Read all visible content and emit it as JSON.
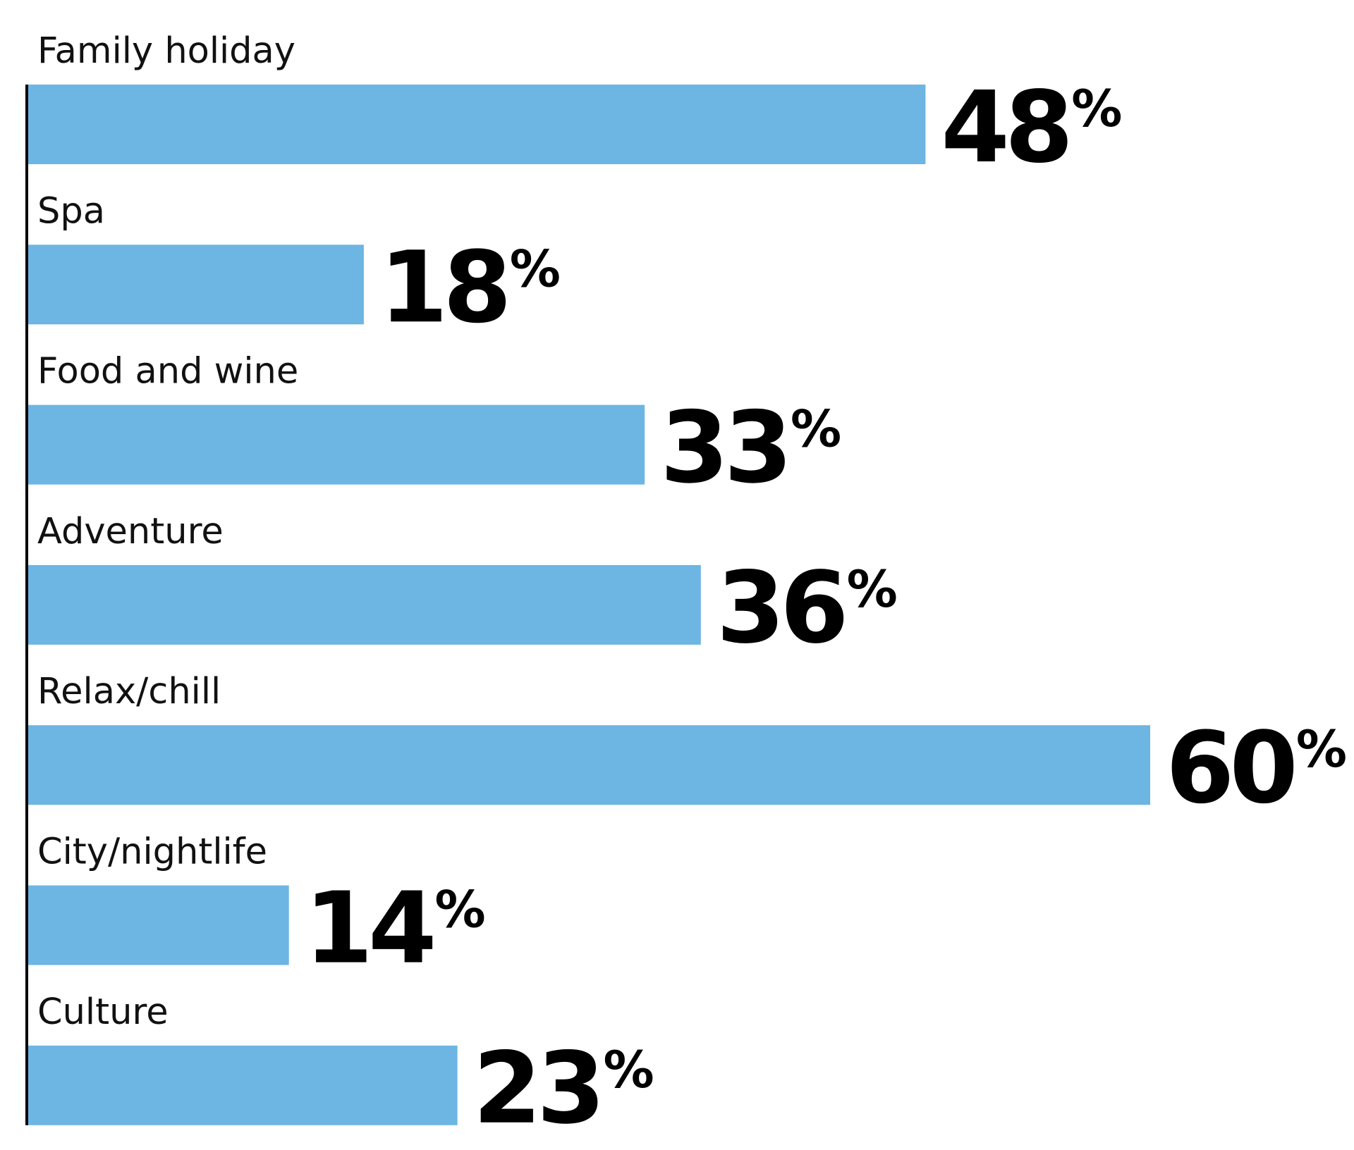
{
  "chart_data": {
    "type": "bar",
    "orientation": "horizontal",
    "categories": [
      "Family holiday",
      "Spa",
      "Food and wine",
      "Adventure",
      "Relax/chill",
      "City/nightlife",
      "Culture"
    ],
    "values": [
      48,
      18,
      33,
      36,
      60,
      14,
      23
    ],
    "value_labels": [
      "48",
      "18",
      "33",
      "36",
      "60",
      "14",
      "23"
    ],
    "value_suffix": "%",
    "title": "",
    "xlabel": "",
    "ylabel": "",
    "xlim": [
      0,
      60
    ],
    "grid": false,
    "legend": "none",
    "colors": {
      "bar": "#6db5e2",
      "axis": "#000000",
      "label": "#111111",
      "value": "#000000"
    }
  }
}
